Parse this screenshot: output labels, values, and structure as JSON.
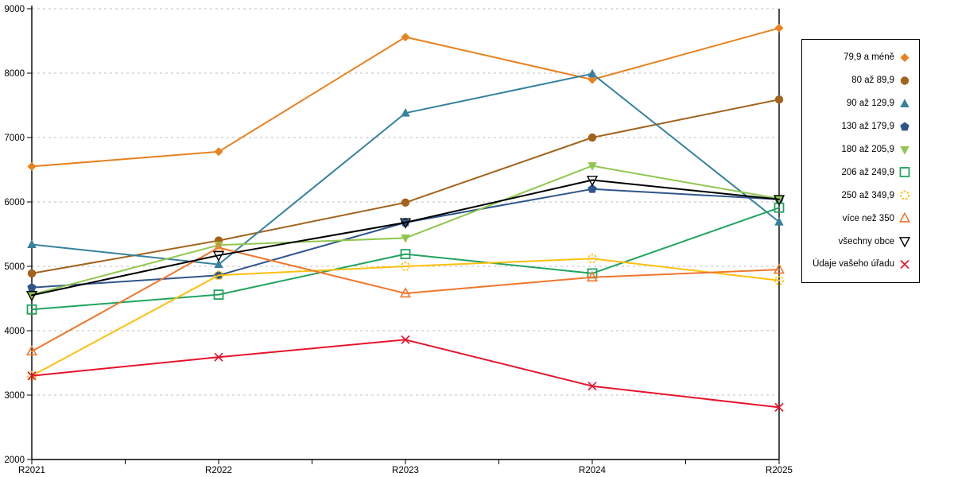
{
  "chart_data": {
    "type": "line",
    "title": "",
    "xlabel": "",
    "ylabel": "",
    "categories": [
      "R2021",
      "R2022",
      "R2023",
      "R2024",
      "R2025"
    ],
    "y_ticks": [
      2000,
      3000,
      4000,
      5000,
      6000,
      7000,
      8000,
      9000
    ],
    "ylim": [
      2000,
      9000
    ],
    "grid": "horizontal-dashed",
    "grid_color": "#bfbfbf",
    "axis_color": "#000000",
    "legend_position": "right",
    "series": [
      {
        "name": "79,9 a méně",
        "color": "#e8811e",
        "marker": "diamond",
        "values": [
          6550,
          6780,
          8560,
          7900,
          8700
        ]
      },
      {
        "name": "80 až 89,9",
        "color": "#a2631c",
        "marker": "circle",
        "values": [
          4890,
          5400,
          5990,
          7000,
          7590
        ]
      },
      {
        "name": "90 až 129,9",
        "color": "#35819e",
        "marker": "triangle-up",
        "values": [
          5340,
          5030,
          7380,
          7990,
          5690
        ]
      },
      {
        "name": "130 až 179,9",
        "color": "#30568c",
        "marker": "pentagon",
        "values": [
          4670,
          4860,
          5680,
          6200,
          6040
        ]
      },
      {
        "name": "180 až 205,9",
        "color": "#90c74e",
        "marker": "triangle-down",
        "values": [
          4560,
          5330,
          5440,
          6560,
          6050
        ]
      },
      {
        "name": "206 až 249,9",
        "color": "#21a45f",
        "marker": "square-open",
        "values": [
          4330,
          4560,
          5190,
          4890,
          5910
        ]
      },
      {
        "name": "250 až 349,9",
        "color": "#fcc00d",
        "marker": "circle-open",
        "values": [
          3300,
          4860,
          5000,
          5120,
          4780
        ]
      },
      {
        "name": "více než 350",
        "color": "#f1762b",
        "marker": "triangle-open",
        "values": [
          3680,
          5290,
          4580,
          4830,
          4950
        ]
      },
      {
        "name": "všechny obce",
        "color": "#000000",
        "marker": "triangle-down-open",
        "values": [
          4550,
          5170,
          5680,
          6340,
          6040
        ]
      },
      {
        "name": "Údaje vašeho úřadu",
        "color": "#e8132b",
        "marker": "x",
        "values": [
          3300,
          3590,
          3860,
          3140,
          2810
        ]
      }
    ]
  }
}
